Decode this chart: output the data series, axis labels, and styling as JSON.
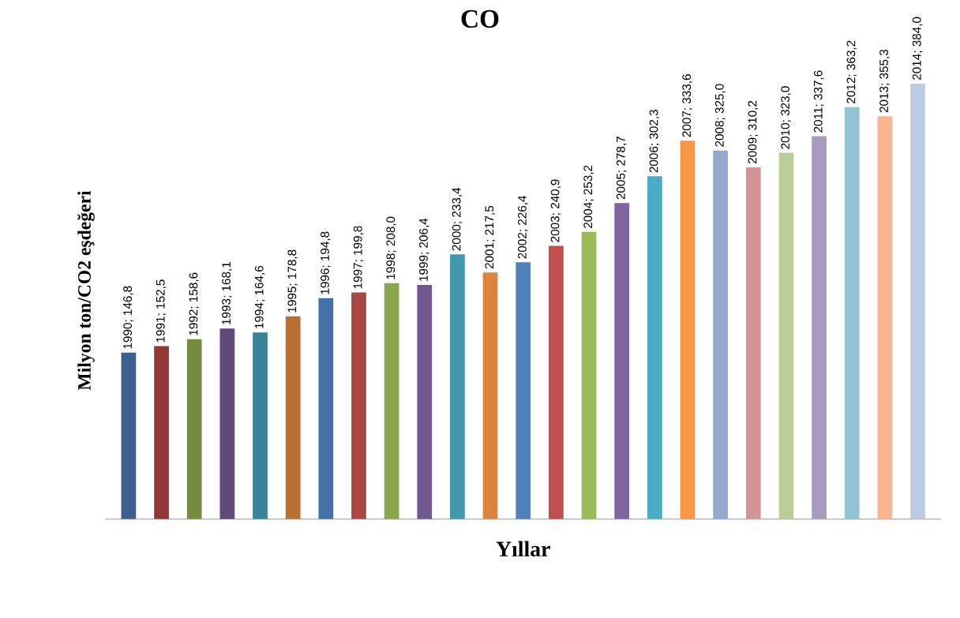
{
  "chart_data": {
    "type": "bar",
    "title": "CO",
    "xlabel": "Yıllar",
    "ylabel": "Milyon ton/CO2 eşdeğeri",
    "categories": [
      null,
      null,
      null,
      null,
      null,
      null,
      null,
      null,
      null,
      null,
      null,
      null,
      null,
      null,
      null,
      null,
      null,
      null,
      null,
      null,
      null,
      null,
      null,
      null,
      null
    ],
    "values": [
      146.8,
      152.5,
      158.6,
      168.1,
      164.6,
      178.8,
      194.8,
      199.8,
      208.0,
      206.4,
      233.4,
      217.5,
      226.4,
      240.9,
      253.2,
      278.7,
      302.3,
      333.6,
      325.0,
      310.2,
      323.0,
      337.6,
      363.2,
      355.3,
      384.0
    ],
    "value_labels": [
      "1990; 146,8",
      "1991; 152,5",
      "1992; 158,6",
      "1993; 168,1",
      "1994; 164,6",
      "1995; 178,8",
      "1996; 194,8",
      "1997; 199,8",
      "1998; 208,0",
      "1999; 206,4",
      "2000; 233,4",
      "2001; 217,5",
      "2002; 226,4",
      "2003; 240,9",
      "2004; 253,2",
      "2005; 278,7",
      "2006; 302,3",
      "2007; 333,6",
      "2008; 325,0",
      "2009; 310,2",
      "2010; 323,0",
      "2011; 337,6",
      "2012; 363,2",
      "2013; 355,3",
      "2014; 384,0"
    ],
    "colors": [
      "#3c5f8f",
      "#953735",
      "#758c3e",
      "#5f4a7b",
      "#368496",
      "#b96f31",
      "#4472a8",
      "#aa4643",
      "#89a54e",
      "#71588f",
      "#4198af",
      "#db843d",
      "#4f81bd",
      "#c0504d",
      "#9bbb59",
      "#8064a2",
      "#4bacc6",
      "#f79646",
      "#95a9d0",
      "#d49494",
      "#b9ce96",
      "#a99bbd",
      "#92c3d5",
      "#f9b590",
      "#bccae3"
    ],
    "tick_labels": false
  }
}
